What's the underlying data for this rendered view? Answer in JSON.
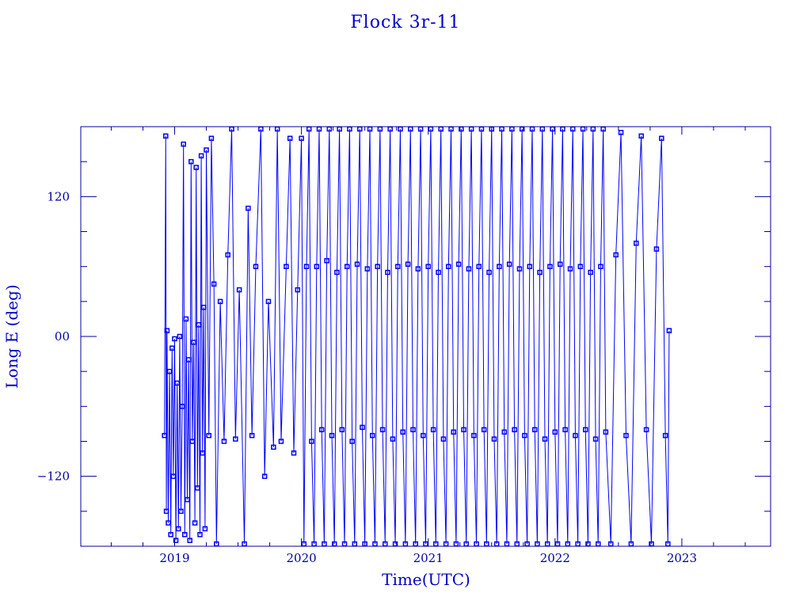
{
  "chart_data": {
    "type": "line",
    "title": "Flock 3r-11",
    "xlabel": "Time(UTC)",
    "ylabel": "Long E (deg)",
    "xlim": [
      2018.26,
      2023.7
    ],
    "ylim": [
      -180,
      180
    ],
    "x_ticks": [
      2019,
      2020,
      2021,
      2022,
      2023
    ],
    "x_tick_labels": [
      "2019",
      "2020",
      "2021",
      "2022",
      "2023"
    ],
    "y_ticks": [
      120,
      0,
      -120
    ],
    "y_tick_labels": [
      "120",
      "00",
      "-120"
    ],
    "grid": false,
    "markers": "square",
    "colors": {
      "series": "#0000ff",
      "axes": "#0000a0",
      "text": "#0000c8"
    },
    "series": [
      {
        "points": [
          [
            2018.92,
            -85
          ],
          [
            2018.93,
            172
          ],
          [
            2018.935,
            -150
          ],
          [
            2018.94,
            5
          ],
          [
            2018.95,
            -160
          ],
          [
            2018.96,
            -30
          ],
          [
            2018.97,
            -170
          ],
          [
            2018.98,
            -10
          ],
          [
            2018.99,
            -120
          ],
          [
            2019.0,
            -2
          ],
          [
            2019.01,
            -175
          ],
          [
            2019.02,
            -40
          ],
          [
            2019.03,
            -165
          ],
          [
            2019.04,
            0
          ],
          [
            2019.05,
            -150
          ],
          [
            2019.06,
            -60
          ],
          [
            2019.07,
            165
          ],
          [
            2019.08,
            -170
          ],
          [
            2019.09,
            15
          ],
          [
            2019.1,
            -140
          ],
          [
            2019.11,
            -20
          ],
          [
            2019.12,
            -175
          ],
          [
            2019.13,
            150
          ],
          [
            2019.14,
            -90
          ],
          [
            2019.15,
            -5
          ],
          [
            2019.16,
            -160
          ],
          [
            2019.17,
            145
          ],
          [
            2019.18,
            -130
          ],
          [
            2019.19,
            10
          ],
          [
            2019.2,
            -170
          ],
          [
            2019.21,
            155
          ],
          [
            2019.22,
            -100
          ],
          [
            2019.23,
            25
          ],
          [
            2019.24,
            -165
          ],
          [
            2019.25,
            160
          ],
          [
            2019.27,
            -85
          ],
          [
            2019.29,
            170
          ],
          [
            2019.31,
            45
          ],
          [
            2019.33,
            -178
          ],
          [
            2019.36,
            30
          ],
          [
            2019.39,
            -90
          ],
          [
            2019.42,
            70
          ],
          [
            2019.45,
            178
          ],
          [
            2019.48,
            -88
          ],
          [
            2019.51,
            40
          ],
          [
            2019.55,
            -178
          ],
          [
            2019.58,
            110
          ],
          [
            2019.61,
            -85
          ],
          [
            2019.64,
            60
          ],
          [
            2019.68,
            178
          ],
          [
            2019.71,
            -120
          ],
          [
            2019.74,
            30
          ],
          [
            2019.78,
            -95
          ],
          [
            2019.81,
            178
          ],
          [
            2019.84,
            -90
          ],
          [
            2019.88,
            60
          ],
          [
            2019.91,
            170
          ],
          [
            2019.94,
            -100
          ],
          [
            2019.97,
            40
          ],
          [
            2020.0,
            170
          ],
          [
            2020.02,
            -178
          ],
          [
            2020.04,
            60
          ],
          [
            2020.06,
            178
          ],
          [
            2020.08,
            -90
          ],
          [
            2020.1,
            -178
          ],
          [
            2020.12,
            60
          ],
          [
            2020.14,
            178
          ],
          [
            2020.16,
            -80
          ],
          [
            2020.18,
            -178
          ],
          [
            2020.2,
            65
          ],
          [
            2020.22,
            178
          ],
          [
            2020.24,
            -85
          ],
          [
            2020.26,
            -178
          ],
          [
            2020.28,
            55
          ],
          [
            2020.3,
            178
          ],
          [
            2020.32,
            -80
          ],
          [
            2020.34,
            -178
          ],
          [
            2020.36,
            60
          ],
          [
            2020.38,
            178
          ],
          [
            2020.4,
            -90
          ],
          [
            2020.42,
            -178
          ],
          [
            2020.44,
            62
          ],
          [
            2020.46,
            178
          ],
          [
            2020.48,
            -78
          ],
          [
            2020.5,
            -178
          ],
          [
            2020.52,
            58
          ],
          [
            2020.54,
            178
          ],
          [
            2020.56,
            -85
          ],
          [
            2020.58,
            -178
          ],
          [
            2020.6,
            60
          ],
          [
            2020.62,
            178
          ],
          [
            2020.64,
            -80
          ],
          [
            2020.66,
            -178
          ],
          [
            2020.68,
            55
          ],
          [
            2020.7,
            178
          ],
          [
            2020.72,
            -88
          ],
          [
            2020.74,
            -178
          ],
          [
            2020.76,
            60
          ],
          [
            2020.78,
            178
          ],
          [
            2020.8,
            -82
          ],
          [
            2020.82,
            -178
          ],
          [
            2020.84,
            62
          ],
          [
            2020.86,
            178
          ],
          [
            2020.88,
            -80
          ],
          [
            2020.9,
            -178
          ],
          [
            2020.92,
            58
          ],
          [
            2020.94,
            178
          ],
          [
            2020.96,
            -85
          ],
          [
            2020.98,
            -178
          ],
          [
            2021.0,
            60
          ],
          [
            2021.02,
            178
          ],
          [
            2021.04,
            -80
          ],
          [
            2021.06,
            -178
          ],
          [
            2021.08,
            55
          ],
          [
            2021.1,
            178
          ],
          [
            2021.12,
            -88
          ],
          [
            2021.14,
            -178
          ],
          [
            2021.16,
            60
          ],
          [
            2021.18,
            178
          ],
          [
            2021.2,
            -82
          ],
          [
            2021.22,
            -178
          ],
          [
            2021.24,
            62
          ],
          [
            2021.26,
            178
          ],
          [
            2021.28,
            -80
          ],
          [
            2021.3,
            -178
          ],
          [
            2021.32,
            58
          ],
          [
            2021.34,
            178
          ],
          [
            2021.36,
            -85
          ],
          [
            2021.38,
            -178
          ],
          [
            2021.4,
            60
          ],
          [
            2021.42,
            178
          ],
          [
            2021.44,
            -80
          ],
          [
            2021.46,
            -178
          ],
          [
            2021.48,
            55
          ],
          [
            2021.5,
            178
          ],
          [
            2021.52,
            -88
          ],
          [
            2021.54,
            -178
          ],
          [
            2021.56,
            60
          ],
          [
            2021.58,
            178
          ],
          [
            2021.6,
            -82
          ],
          [
            2021.62,
            -178
          ],
          [
            2021.64,
            62
          ],
          [
            2021.66,
            178
          ],
          [
            2021.68,
            -80
          ],
          [
            2021.7,
            -178
          ],
          [
            2021.72,
            58
          ],
          [
            2021.74,
            178
          ],
          [
            2021.76,
            -85
          ],
          [
            2021.78,
            -178
          ],
          [
            2021.8,
            60
          ],
          [
            2021.82,
            178
          ],
          [
            2021.84,
            -80
          ],
          [
            2021.86,
            -178
          ],
          [
            2021.88,
            55
          ],
          [
            2021.9,
            178
          ],
          [
            2021.92,
            -88
          ],
          [
            2021.94,
            -178
          ],
          [
            2021.96,
            60
          ],
          [
            2021.98,
            178
          ],
          [
            2022.0,
            -82
          ],
          [
            2022.02,
            -178
          ],
          [
            2022.04,
            62
          ],
          [
            2022.06,
            178
          ],
          [
            2022.08,
            -80
          ],
          [
            2022.1,
            -178
          ],
          [
            2022.12,
            58
          ],
          [
            2022.14,
            178
          ],
          [
            2022.16,
            -85
          ],
          [
            2022.18,
            -178
          ],
          [
            2022.2,
            60
          ],
          [
            2022.22,
            178
          ],
          [
            2022.24,
            -80
          ],
          [
            2022.26,
            -178
          ],
          [
            2022.28,
            55
          ],
          [
            2022.3,
            178
          ],
          [
            2022.32,
            -88
          ],
          [
            2022.34,
            -178
          ],
          [
            2022.36,
            60
          ],
          [
            2022.38,
            178
          ],
          [
            2022.4,
            -82
          ],
          [
            2022.44,
            -178
          ],
          [
            2022.48,
            70
          ],
          [
            2022.52,
            175
          ],
          [
            2022.56,
            -85
          ],
          [
            2022.6,
            -178
          ],
          [
            2022.64,
            80
          ],
          [
            2022.68,
            172
          ],
          [
            2022.72,
            -80
          ],
          [
            2022.76,
            -178
          ],
          [
            2022.8,
            75
          ],
          [
            2022.84,
            170
          ],
          [
            2022.87,
            -85
          ],
          [
            2022.89,
            -178
          ],
          [
            2022.9,
            5
          ]
        ]
      }
    ]
  }
}
